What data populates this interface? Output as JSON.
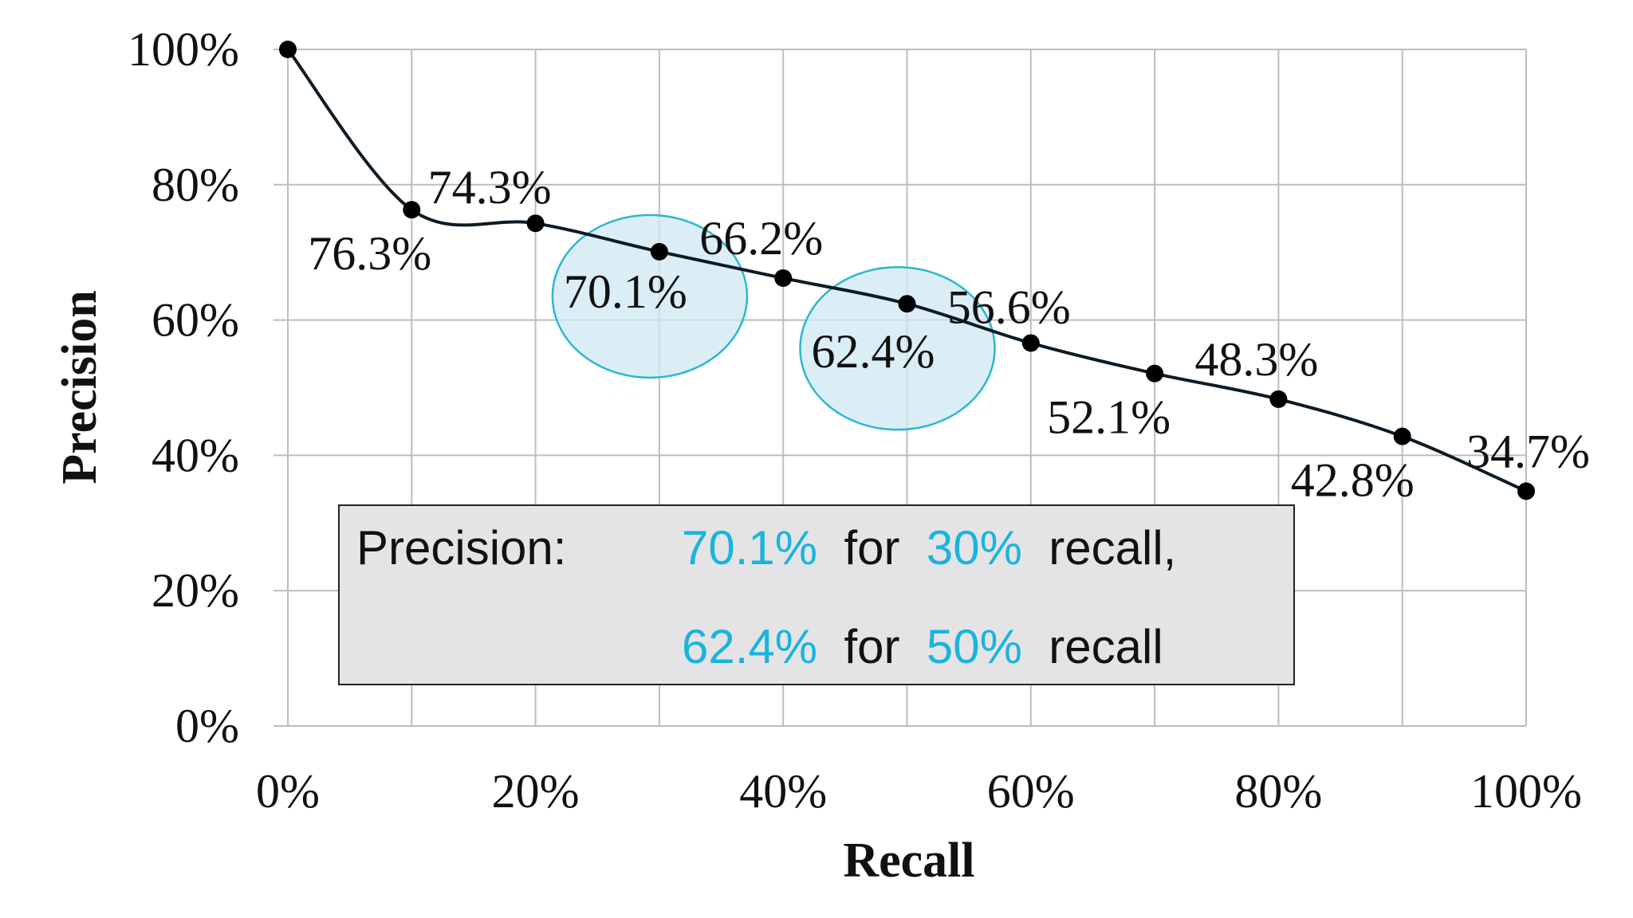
{
  "chart_data": {
    "type": "line",
    "xlabel": "Recall",
    "ylabel": "Precision",
    "x_ticks": [
      "0%",
      "20%",
      "40%",
      "60%",
      "80%",
      "100%"
    ],
    "y_ticks": [
      "0%",
      "20%",
      "40%",
      "60%",
      "80%",
      "100%"
    ],
    "xlim": [
      0,
      100
    ],
    "ylim": [
      0,
      100
    ],
    "grid": true,
    "x": [
      0,
      10,
      20,
      30,
      40,
      50,
      60,
      70,
      80,
      90,
      100
    ],
    "y": [
      100,
      76.3,
      74.3,
      70.1,
      66.2,
      62.4,
      56.6,
      52.1,
      48.3,
      42.8,
      34.7
    ],
    "data_labels": [
      "",
      "76.3%",
      "74.3%",
      "70.1%",
      "66.2%",
      "62.4%",
      "56.6%",
      "52.1%",
      "48.3%",
      "42.8%",
      "34.7%"
    ],
    "highlighted_points": [
      30,
      50
    ],
    "colors": {
      "line": "#0d1b24",
      "highlight_fill": "#cfe8f3",
      "highlight_stroke": "#2bb7d0",
      "accent_text": "#1ab4dc"
    }
  },
  "annotation_box": {
    "line1": {
      "prefix": "Precision:",
      "value1": "70.1%",
      "mid": " for ",
      "value2": "30%",
      "suffix": " recall,"
    },
    "line2": {
      "value1": "62.4%",
      "mid": " for ",
      "value2": "50%",
      "suffix": " recall"
    }
  }
}
